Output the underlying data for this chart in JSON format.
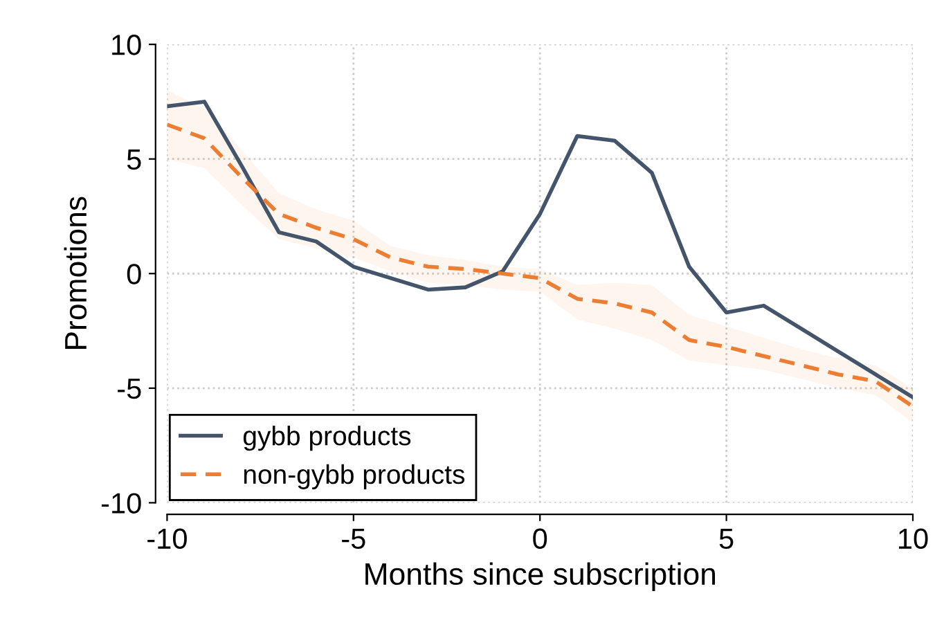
{
  "chart_data": {
    "type": "line",
    "xlabel": "Months since subscription",
    "ylabel": "Promotions",
    "x": [
      -10,
      -9,
      -8,
      -7,
      -6,
      -5,
      -4,
      -3,
      -2,
      -1,
      0,
      1,
      2,
      3,
      4,
      5,
      6,
      7,
      8,
      9,
      10
    ],
    "series": [
      {
        "name": "gybb products",
        "color": "#44546a",
        "line_style": "solid",
        "values": [
          7.3,
          7.5,
          4.7,
          1.8,
          1.4,
          0.3,
          -0.2,
          -0.7,
          -0.6,
          0.1,
          2.6,
          6.0,
          5.8,
          4.4,
          0.3,
          -1.7,
          -1.4,
          -2.4,
          -3.4,
          -4.4,
          -5.4
        ]
      },
      {
        "name": "non-gybb products",
        "color": "#ed7d31",
        "line_style": "dashed",
        "values": [
          6.5,
          5.9,
          4.2,
          2.6,
          2.0,
          1.5,
          0.7,
          0.3,
          0.2,
          0.0,
          -0.2,
          -1.1,
          -1.3,
          -1.7,
          -2.9,
          -3.2,
          -3.6,
          -4.0,
          -4.4,
          -4.7,
          -5.8
        ],
        "lower": [
          5.0,
          4.6,
          3.0,
          1.5,
          1.1,
          0.7,
          0.1,
          -0.4,
          -0.5,
          -0.7,
          -0.8,
          -2.0,
          -2.4,
          -2.9,
          -3.8,
          -4.0,
          -4.2,
          -4.6,
          -5.0,
          -5.3,
          -6.5
        ],
        "upper": [
          8.0,
          7.2,
          5.4,
          3.5,
          2.8,
          2.3,
          1.2,
          0.8,
          0.6,
          0.3,
          0.2,
          -0.5,
          -0.4,
          -0.5,
          -1.8,
          -2.3,
          -2.8,
          -3.3,
          -3.7,
          -4.0,
          -5.0
        ]
      }
    ],
    "xlim": [
      -10,
      10
    ],
    "xticks": [
      -10,
      -5,
      0,
      5,
      10
    ],
    "ylim": [
      -10,
      10
    ],
    "yticks": [
      {
        "value": -10,
        "label": "-10"
      },
      {
        "value": -5,
        "label": "-5"
      },
      0,
      5,
      10
    ],
    "grid": true,
    "legend": "bottom left",
    "marker": "none"
  }
}
